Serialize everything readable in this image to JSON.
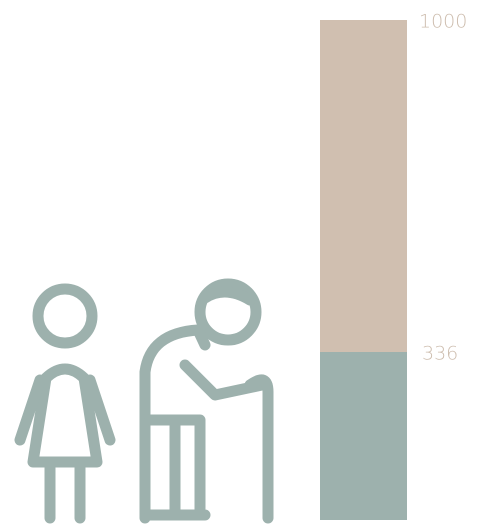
{
  "chart_data": {
    "type": "bar",
    "overlap": true,
    "values": [
      1000,
      336
    ],
    "colors": [
      "#d0bfb0",
      "#9db1ad"
    ],
    "label_color": "#cdbdae",
    "ylim": [
      0,
      1000
    ]
  }
}
